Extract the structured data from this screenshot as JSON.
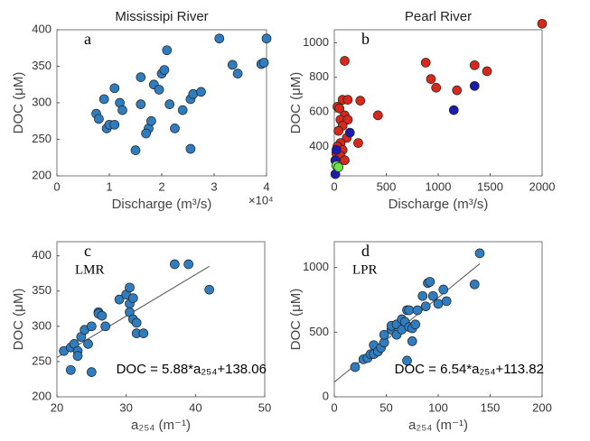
{
  "chart_data": [
    {
      "type": "scatter",
      "title": "Mississipi River",
      "panel_label": "a",
      "xlabel": "Discharge (m³/s)",
      "ylabel": "DOC (μM)",
      "x_multiplier": "×10⁴",
      "xlim": [
        0,
        4
      ],
      "ylim": [
        200,
        400
      ],
      "xticks": [
        0,
        1,
        2,
        3,
        4
      ],
      "yticks": [
        200,
        250,
        300,
        350,
        400
      ],
      "series": [
        {
          "color": "#2f7dbf",
          "x": [
            0.75,
            0.8,
            0.9,
            0.95,
            1.0,
            1.1,
            1.1,
            1.2,
            1.25,
            1.5,
            1.6,
            1.6,
            1.75,
            1.7,
            1.8,
            1.85,
            1.95,
            2.0,
            2.05,
            2.1,
            2.15,
            2.25,
            2.4,
            2.55,
            2.55,
            2.6,
            2.75,
            3.1,
            3.35,
            3.45,
            3.9,
            3.95,
            4.0
          ],
          "y": [
            285,
            278,
            305,
            265,
            270,
            320,
            270,
            300,
            290,
            235,
            335,
            298,
            265,
            258,
            275,
            325,
            318,
            340,
            345,
            372,
            298,
            265,
            290,
            237,
            305,
            312,
            315,
            388,
            352,
            340,
            353,
            355,
            388
          ]
        }
      ]
    },
    {
      "type": "scatter",
      "title": "Pearl River",
      "panel_label": "b",
      "xlabel": "Discharge (m³/s)",
      "ylabel": "DOC (μM)",
      "xlim": [
        0,
        2000
      ],
      "ylim": [
        230,
        1075
      ],
      "xticks": [
        0,
        500,
        1000,
        1500,
        2000
      ],
      "yticks": [
        400,
        600,
        800,
        1000
      ],
      "series": [
        {
          "color": "#d8281c",
          "x": [
            2000,
            100,
            880,
            930,
            980,
            1350,
            1470,
            1180,
            80,
            130,
            250,
            30,
            50,
            100,
            60,
            130,
            420,
            80,
            40,
            120,
            230,
            60,
            30,
            80,
            20,
            60,
            100
          ],
          "y": [
            1110,
            895,
            885,
            790,
            740,
            870,
            835,
            725,
            670,
            670,
            665,
            630,
            620,
            580,
            555,
            555,
            580,
            520,
            490,
            450,
            420,
            420,
            400,
            380,
            360,
            345,
            320
          ]
        },
        {
          "color": "#1c1cb0",
          "x": [
            1350,
            1150,
            150,
            20,
            10,
            10
          ],
          "y": [
            750,
            610,
            480,
            380,
            320,
            240
          ]
        },
        {
          "color": "#6ee04a",
          "x": [
            20,
            40
          ],
          "y": [
            290,
            280
          ]
        }
      ]
    },
    {
      "type": "scatter",
      "panel_label": "c",
      "annotation": "LMR",
      "equation": "DOC = 5.88*a₂₅₄+138.06",
      "fit": {
        "slope": 5.88,
        "intercept": 138.06
      },
      "xlabel": "a₂₅₄ (m⁻¹)",
      "ylabel": "DOC (μM)",
      "xlim": [
        20,
        50
      ],
      "ylim": [
        200,
        420
      ],
      "xticks": [
        20,
        30,
        40,
        50
      ],
      "yticks": [
        200,
        250,
        300,
        350,
        400
      ],
      "series": [
        {
          "color": "#2f7dbf",
          "x": [
            21,
            22,
            22,
            22.5,
            23,
            23,
            23.5,
            24,
            24.5,
            25,
            25,
            26,
            26,
            26.5,
            27,
            29,
            30,
            30.5,
            30.5,
            30.5,
            31,
            31,
            31.5,
            31.5,
            32.5,
            37,
            39,
            42
          ],
          "y": [
            265,
            238,
            270,
            275,
            265,
            258,
            285,
            295,
            275,
            300,
            235,
            320,
            318,
            315,
            300,
            338,
            345,
            355,
            332,
            320,
            340,
            310,
            305,
            290,
            290,
            388,
            388,
            352
          ]
        }
      ]
    },
    {
      "type": "scatter",
      "panel_label": "d",
      "annotation": "LPR",
      "equation": "DOC = 6.54*a₂₅₄+113.82",
      "fit": {
        "slope": 6.54,
        "intercept": 113.82
      },
      "xlabel": "a₂₅₄ (m⁻¹)",
      "ylabel": "DOC (μM)",
      "xlim": [
        0,
        200
      ],
      "ylim": [
        0,
        1200
      ],
      "xticks": [
        0,
        50,
        100,
        150,
        200
      ],
      "yticks": [
        0,
        500,
        1000
      ],
      "series": [
        {
          "color": "#2f7dbf",
          "x": [
            20,
            28,
            32,
            35,
            38,
            38,
            42,
            45,
            48,
            48,
            55,
            55,
            60,
            60,
            65,
            65,
            68,
            70,
            72,
            70,
            72,
            75,
            75,
            78,
            80,
            85,
            88,
            90,
            92,
            95,
            100,
            105,
            108,
            135,
            140
          ],
          "y": [
            230,
            290,
            300,
            330,
            330,
            400,
            350,
            380,
            420,
            480,
            520,
            550,
            560,
            480,
            520,
            600,
            580,
            670,
            670,
            280,
            540,
            430,
            530,
            560,
            670,
            780,
            700,
            880,
            890,
            780,
            720,
            830,
            740,
            870,
            1110
          ]
        }
      ]
    }
  ]
}
